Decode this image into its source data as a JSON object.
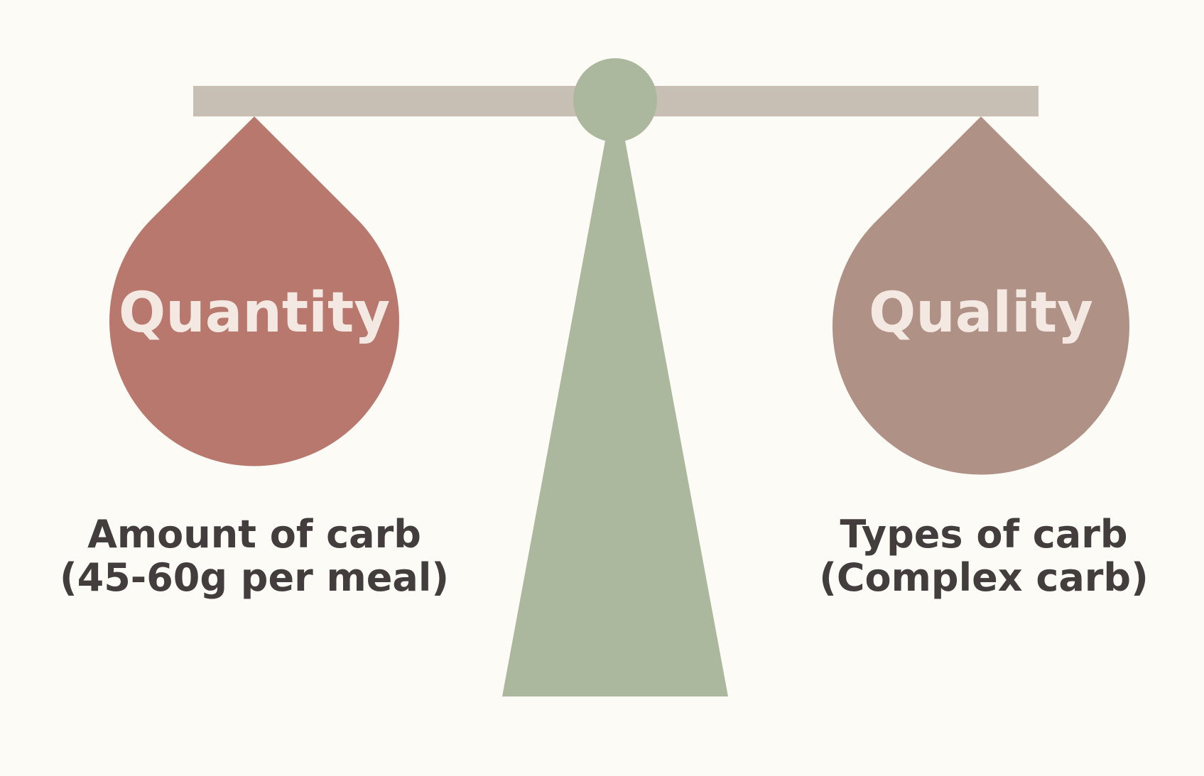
{
  "colors": {
    "background": "#fdfbf5",
    "beam": "#c7bfb4",
    "stand": "#abb89d",
    "left_weight": "#b8786e",
    "right_weight": "#b09186",
    "weight_label": "#f3e8e2",
    "caption_text": "#433e3d"
  },
  "left": {
    "weight_label": "Quantity",
    "caption_line1": "Amount of carb",
    "caption_line2": "(45-60g per meal)"
  },
  "right": {
    "weight_label": "Quality",
    "caption_line1": "Types of carb",
    "caption_line2": "(Complex carb)"
  }
}
